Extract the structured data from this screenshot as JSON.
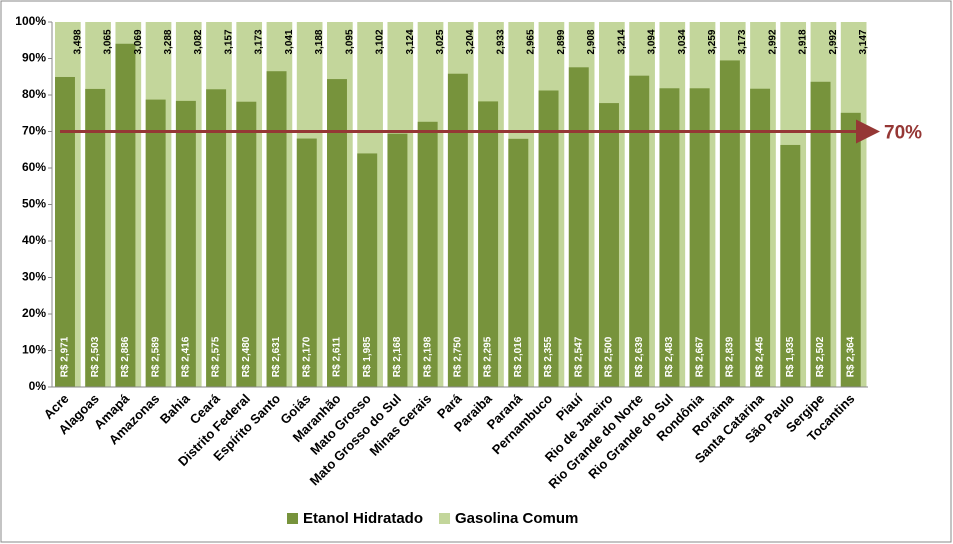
{
  "chart_data": {
    "type": "bar",
    "categories": [
      "Acre",
      "Alagoas",
      "Amapá",
      "Amazonas",
      "Bahia",
      "Ceará",
      "Distrito Federal",
      "Espírito Santo",
      "Goiás",
      "Maranhão",
      "Mato Grosso",
      "Mato Grosso do Sul",
      "Minas Gerais",
      "Pará",
      "Paraiba",
      "Paraná",
      "Pernambuco",
      "Piauí",
      "Rio de Janeiro",
      "Rio Grande do Norte",
      "Rio Grande do Sul",
      "Rondônia",
      "Roraima",
      "Santa Catarina",
      "São Paulo",
      "Sergipe",
      "Tocantins"
    ],
    "series": [
      {
        "name": "Etanol Hidratado",
        "color": "#77933c",
        "values": [
          2.971,
          2.503,
          2.886,
          2.589,
          2.416,
          2.575,
          2.48,
          2.631,
          2.17,
          2.611,
          1.985,
          2.168,
          2.198,
          2.75,
          2.295,
          2.016,
          2.355,
          2.547,
          2.5,
          2.639,
          2.483,
          2.667,
          2.839,
          2.445,
          1.935,
          2.502,
          2.364
        ],
        "value_labels": [
          "R$ 2,971",
          "R$ 2,503",
          "R$ 2,886",
          "R$ 2,589",
          "R$ 2,416",
          "R$ 2,575",
          "R$ 2,480",
          "R$ 2,631",
          "R$ 2,170",
          "R$ 2,611",
          "R$ 1,985",
          "R$ 2,168",
          "R$ 2,198",
          "R$ 2,750",
          "R$ 2,295",
          "R$ 2,016",
          "R$ 2,355",
          "R$ 2,547",
          "R$ 2,500",
          "R$ 2,639",
          "R$ 2,483",
          "R$ 2,667",
          "R$ 2,839",
          "R$ 2,445",
          "R$ 1,935",
          "R$ 2,502",
          "R$ 2,364"
        ]
      },
      {
        "name": "Gasolina Comum",
        "color": "#c3d69b",
        "values": [
          3.498,
          3.065,
          3.069,
          3.288,
          3.082,
          3.157,
          3.173,
          3.041,
          3.188,
          3.095,
          3.102,
          3.124,
          3.025,
          3.204,
          2.933,
          2.965,
          2.899,
          2.908,
          3.214,
          3.094,
          3.034,
          3.259,
          3.173,
          2.992,
          2.918,
          2.992,
          3.147
        ],
        "value_labels": [
          "3,498",
          "3,065",
          "3,069",
          "3,288",
          "3,082",
          "3,157",
          "3,173",
          "3,041",
          "3,188",
          "3,095",
          "3,102",
          "3,124",
          "3,025",
          "3,204",
          "2,933",
          "2,965",
          "2,899",
          "2,908",
          "3,214",
          "3,094",
          "3,034",
          "3,259",
          "3,173",
          "2,992",
          "2,918",
          "2,992",
          "3,147"
        ]
      }
    ],
    "ylim": [
      0,
      100
    ],
    "yticks": [
      {
        "value": 0,
        "label": "0%"
      },
      {
        "value": 10,
        "label": "10%"
      },
      {
        "value": 20,
        "label": "20%"
      },
      {
        "value": 30,
        "label": "30%"
      },
      {
        "value": 40,
        "label": "40%"
      },
      {
        "value": 50,
        "label": "50%"
      },
      {
        "value": 60,
        "label": "60%"
      },
      {
        "value": 70,
        "label": "70%"
      },
      {
        "value": 80,
        "label": "80%"
      },
      {
        "value": 90,
        "label": "90%"
      },
      {
        "value": 100,
        "label": "100%"
      }
    ],
    "grid": false,
    "reference_line": {
      "value": 70,
      "label": "70%",
      "color": "#953735"
    },
    "legend": "bottom"
  }
}
